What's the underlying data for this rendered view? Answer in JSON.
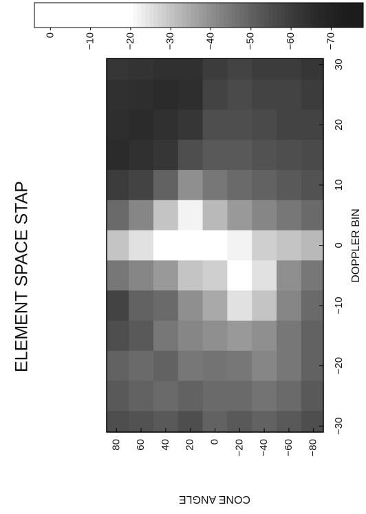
{
  "chart_data": {
    "type": "heatmap",
    "title": "ELEMENT SPACE STAP",
    "x_label": "DOPPLER BIN",
    "y_label": "CONE ANGLE",
    "x": [
      -30,
      -25,
      -20,
      -15,
      -10,
      -5,
      0,
      5,
      10,
      15,
      20,
      25,
      30
    ],
    "y": [
      80,
      60,
      40,
      20,
      0,
      -20,
      -40,
      -60,
      -80
    ],
    "z": [
      [
        -55,
        -52,
        -50,
        -55,
        -58,
        -45,
        -30,
        -48,
        -60,
        -66,
        -65,
        -64,
        -62
      ],
      [
        -54,
        -50,
        -48,
        -52,
        -50,
        -42,
        -25,
        -42,
        -58,
        -64,
        -66,
        -65,
        -63
      ],
      [
        -52,
        -48,
        -50,
        -45,
        -48,
        -38,
        -20,
        -30,
        -50,
        -62,
        -64,
        -66,
        -64
      ],
      [
        -55,
        -50,
        -45,
        -42,
        -40,
        -30,
        0,
        -22,
        -40,
        -55,
        -62,
        -65,
        -64
      ],
      [
        -50,
        -48,
        -46,
        -40,
        -35,
        -28,
        -10,
        -32,
        -45,
        -52,
        -55,
        -58,
        -60
      ],
      [
        -52,
        -48,
        -45,
        -38,
        -25,
        -12,
        -22,
        -38,
        -48,
        -52,
        -55,
        -56,
        -58
      ],
      [
        -50,
        -46,
        -42,
        -40,
        -30,
        -25,
        -28,
        -42,
        -50,
        -54,
        -56,
        -58,
        -60
      ],
      [
        -52,
        -48,
        -45,
        -45,
        -42,
        -40,
        -30,
        -45,
        -52,
        -55,
        -58,
        -58,
        -60
      ],
      [
        -55,
        -52,
        -50,
        -50,
        -48,
        -45,
        -32,
        -48,
        -54,
        -56,
        -58,
        -60,
        -62
      ]
    ],
    "xlim": [
      -31,
      31
    ],
    "ylim": [
      -88,
      88
    ],
    "xticks": [
      {
        "value": -30,
        "label": "−30"
      },
      {
        "value": -20,
        "label": "−20"
      },
      {
        "value": -10,
        "label": "−10"
      },
      0,
      10,
      20,
      30
    ],
    "yticks": [
      80,
      60,
      40,
      20,
      0,
      {
        "value": -20,
        "label": "−20"
      },
      {
        "value": -40,
        "label": "−40"
      },
      {
        "value": -60,
        "label": "−60"
      },
      {
        "value": -80,
        "label": "−80"
      }
    ],
    "colors": [
      "#1c1c1c",
      "#ffffff"
    ],
    "clim": [
      -75,
      -20
    ],
    "colorbar_lim": [
      4,
      -78
    ],
    "colorbar_ticks": [
      0,
      {
        "value": -10,
        "label": "−10"
      },
      {
        "value": -20,
        "label": "−20"
      },
      {
        "value": -30,
        "label": "−30"
      },
      {
        "value": -40,
        "label": "−40"
      },
      {
        "value": -50,
        "label": "−50"
      },
      {
        "value": -60,
        "label": "−60"
      },
      {
        "value": -70,
        "label": "−70"
      }
    ]
  }
}
